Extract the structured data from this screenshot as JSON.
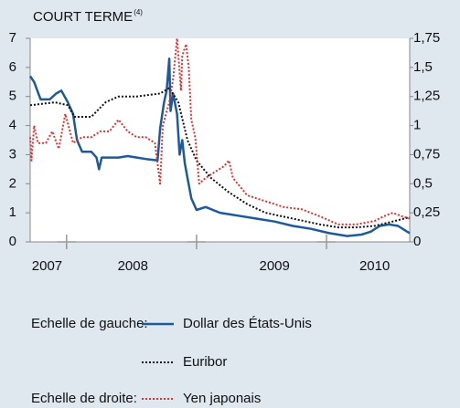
{
  "chart_data": {
    "type": "line",
    "title": "COURT TERME",
    "title_note": "(4)",
    "xlim": [
      2007.72,
      2010.64
    ],
    "x_boundaries": [
      2008,
      2009,
      2010
    ],
    "x_labels": [
      {
        "value": 2007.85,
        "label": "2007"
      },
      {
        "value": 2008.51,
        "label": "2008"
      },
      {
        "value": 2009.6,
        "label": "2009"
      },
      {
        "value": 2010.37,
        "label": "2010"
      }
    ],
    "ylim": [
      0,
      7
    ],
    "yticks": [
      0,
      1,
      2,
      3,
      4,
      5,
      6,
      7
    ],
    "y2lim": [
      0,
      1.75
    ],
    "y2ticks": [
      0,
      {
        "value": 0.25,
        "label": "0,25"
      },
      {
        "value": 0.5,
        "label": "0,5"
      },
      {
        "value": 0.75,
        "label": "0,75"
      },
      1,
      {
        "value": 1.25,
        "label": "1,25"
      },
      {
        "value": 1.5,
        "label": "1,5"
      },
      {
        "value": 1.75,
        "label": "1,75"
      }
    ],
    "left_scale_label": "Echelle de gauche:",
    "right_scale_label": "Echelle de droite:",
    "series": [
      {
        "name": "Dollar des États-Unis",
        "color": "#1d5a9a",
        "style": "solid",
        "x": [
          2007.72,
          2007.75,
          2007.8,
          2007.87,
          2007.92,
          2007.96,
          2008.01,
          2008.05,
          2008.08,
          2008.12,
          2008.19,
          2008.23,
          2008.25,
          2008.27,
          2008.33,
          2008.4,
          2008.47,
          2008.54,
          2008.61,
          2008.7,
          2008.72,
          2008.75,
          2008.77,
          2008.79,
          2008.8,
          2008.82,
          2008.85,
          2008.87,
          2008.89,
          2008.91,
          2008.93,
          2008.96,
          2009.0,
          2009.07,
          2009.18,
          2009.32,
          2009.46,
          2009.6,
          2009.74,
          2009.88,
          2010.02,
          2010.09,
          2010.16,
          2010.27,
          2010.34,
          2010.41,
          2010.48,
          2010.55,
          2010.62,
          2010.64
        ],
        "values": [
          5.7,
          5.5,
          4.9,
          4.9,
          5.1,
          5.2,
          4.8,
          4.4,
          3.5,
          3.1,
          3.1,
          2.9,
          2.5,
          2.9,
          2.9,
          2.9,
          2.95,
          2.9,
          2.85,
          2.8,
          3.9,
          4.8,
          5.2,
          6.3,
          4.5,
          5.1,
          4.4,
          3.0,
          3.5,
          2.7,
          2.2,
          1.5,
          1.1,
          1.2,
          1.0,
          0.9,
          0.8,
          0.7,
          0.55,
          0.45,
          0.3,
          0.25,
          0.2,
          0.25,
          0.35,
          0.55,
          0.6,
          0.55,
          0.35,
          0.3
        ]
      },
      {
        "name": "Euribor",
        "color": "#111111",
        "style": "dotted",
        "x": [
          2007.72,
          2007.91,
          2008.01,
          2008.06,
          2008.19,
          2008.3,
          2008.4,
          2008.54,
          2008.72,
          2008.79,
          2008.86,
          2008.93,
          2009.0,
          2009.11,
          2009.25,
          2009.39,
          2009.53,
          2009.74,
          2009.95,
          2010.09,
          2010.23,
          2010.37,
          2010.51,
          2010.64
        ],
        "values": [
          4.7,
          4.8,
          4.7,
          4.3,
          4.3,
          4.8,
          5.0,
          5.0,
          5.1,
          5.3,
          4.8,
          3.5,
          2.8,
          2.2,
          1.7,
          1.3,
          1.0,
          0.8,
          0.6,
          0.5,
          0.5,
          0.55,
          0.7,
          0.85
        ]
      },
      {
        "name": "Yen japonais",
        "color": "#e03030",
        "style": "dotted",
        "axis": "y2",
        "x": [
          2007.72,
          2007.73,
          2007.75,
          2007.78,
          2007.84,
          2007.89,
          2007.94,
          2007.99,
          2008.05,
          2008.12,
          2008.19,
          2008.26,
          2008.33,
          2008.4,
          2008.47,
          2008.54,
          2008.61,
          2008.68,
          2008.72,
          2008.74,
          2008.79,
          2008.82,
          2008.85,
          2008.88,
          2008.89,
          2008.92,
          2008.94,
          2008.96,
          2008.99,
          2009.02,
          2009.07,
          2009.14,
          2009.21,
          2009.25,
          2009.28,
          2009.39,
          2009.53,
          2009.67,
          2009.81,
          2009.95,
          2010.09,
          2010.23,
          2010.37,
          2010.44,
          2010.51,
          2010.58,
          2010.64
        ],
        "values": [
          0.9,
          0.7,
          1.0,
          0.85,
          0.85,
          0.95,
          0.8,
          1.1,
          0.85,
          0.9,
          0.9,
          0.95,
          0.95,
          1.05,
          0.95,
          0.9,
          0.9,
          0.85,
          0.5,
          1.0,
          1.2,
          1.4,
          1.75,
          1.3,
          1.6,
          1.7,
          1.5,
          1.05,
          0.9,
          0.5,
          0.55,
          0.6,
          0.65,
          0.7,
          0.55,
          0.4,
          0.35,
          0.3,
          0.28,
          0.22,
          0.15,
          0.15,
          0.18,
          0.22,
          0.25,
          0.22,
          0.2
        ]
      }
    ]
  }
}
